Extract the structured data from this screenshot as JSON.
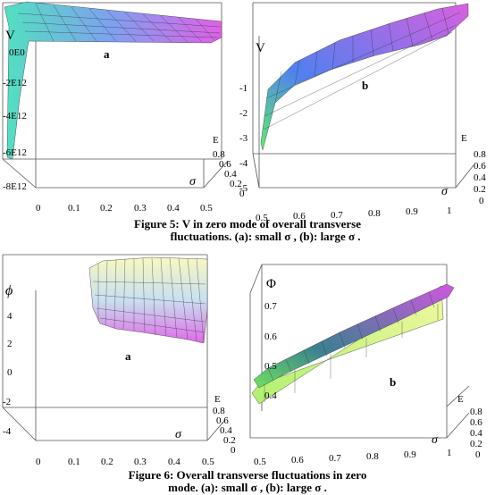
{
  "figure5": {
    "caption_line1": "Figure 5:  V in zero mode of  overall transverse",
    "caption_line2": "fluctuations. (a): small σ , (b): large σ .",
    "panel_a": {
      "panel_label": "a",
      "z_label": "V",
      "z_ticks": [
        "0E0",
        "-2E12",
        "-4E12",
        "-6E12",
        "-8E12"
      ],
      "sigma_label": "σ",
      "sigma_ticks": [
        "0",
        "0.1",
        "0.2",
        "0.3",
        "0.4",
        "0.5"
      ],
      "e_label": "E",
      "e_ticks": [
        "0.8",
        "0.6",
        "0.4",
        "0.2",
        "0"
      ],
      "colors": {
        "surface_start": "#52e0c0",
        "surface_end": "#e060e8"
      }
    },
    "panel_b": {
      "panel_label": "b",
      "z_label": "V",
      "z_ticks": [
        "-1",
        "-2",
        "-3",
        "-4",
        "-5"
      ],
      "sigma_label": "σ",
      "sigma_ticks": [
        "0.5",
        "0.6",
        "0.7",
        "0.8",
        "0.9",
        "1"
      ],
      "e_label": "E",
      "e_ticks": [
        "0.8",
        "0.6",
        "0.4",
        "0.2",
        "0"
      ],
      "colors": {
        "surface_start": "#60f070",
        "surface_end": "#d860e0"
      }
    }
  },
  "figure6": {
    "caption_line1": "Figure 6: Overall transverse fluctuations in zero",
    "caption_line2": "mode. (a): small σ , (b): large σ .",
    "panel_a": {
      "panel_label": "a",
      "z_label": "ϕ",
      "z_ticks": [
        "4",
        "2",
        "0",
        "-2",
        "-4"
      ],
      "sigma_label": "σ",
      "sigma_ticks": [
        "0",
        "0.1",
        "0.2",
        "0.3",
        "0.4",
        "0.5"
      ],
      "e_label": "E",
      "e_ticks": [
        "0.8",
        "0.6",
        "0.4",
        "0.2",
        "0"
      ],
      "colors": {
        "surface_start": "#f8f8a0",
        "surface_end": "#e068e8"
      }
    },
    "panel_b": {
      "panel_label": "b",
      "z_label": "Φ",
      "z_ticks": [
        "0.7",
        "0.6",
        "0.5",
        "0.4"
      ],
      "sigma_label": "σ",
      "sigma_ticks": [
        "0.5",
        "0.6",
        "0.7",
        "0.8",
        "0.9",
        "1"
      ],
      "e_label": "E",
      "e_ticks": [
        "0.8",
        "0.6",
        "0.4",
        "0.2",
        "0"
      ],
      "colors": {
        "surface_start": "#e8f870",
        "surface_end": "#d058e0"
      }
    }
  }
}
